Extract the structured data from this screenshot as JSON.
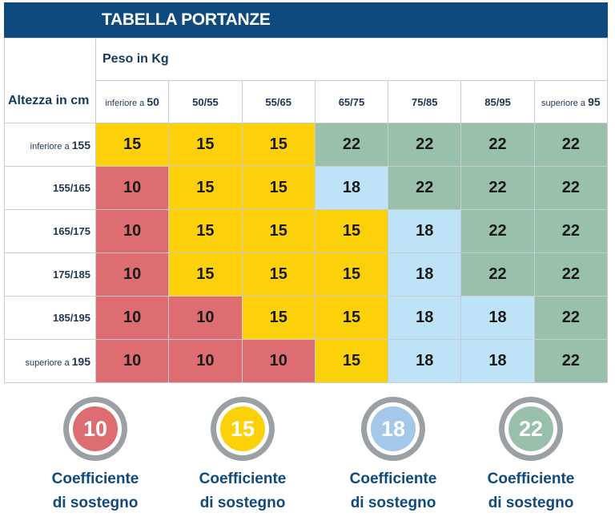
{
  "title": "TABELLA PORTANZE",
  "weight_label": "Peso in Kg",
  "height_label": "Altezza in cm",
  "weight_columns": [
    {
      "prefix": "inferiore a",
      "value": "50"
    },
    {
      "prefix": "",
      "value": "50/55"
    },
    {
      "prefix": "",
      "value": "55/65"
    },
    {
      "prefix": "",
      "value": "65/75"
    },
    {
      "prefix": "",
      "value": "75/85"
    },
    {
      "prefix": "",
      "value": "85/95"
    },
    {
      "prefix": "superiore a",
      "value": "95"
    }
  ],
  "rows": [
    {
      "prefix": "inferiore a",
      "height": "155",
      "values": [
        "15",
        "15",
        "15",
        "22",
        "22",
        "22",
        "22"
      ]
    },
    {
      "prefix": "",
      "height": "155/165",
      "values": [
        "10",
        "15",
        "15",
        "18",
        "22",
        "22",
        "22"
      ]
    },
    {
      "prefix": "",
      "height": "165/175",
      "values": [
        "10",
        "15",
        "15",
        "15",
        "18",
        "22",
        "22"
      ]
    },
    {
      "prefix": "",
      "height": "175/185",
      "values": [
        "10",
        "15",
        "15",
        "15",
        "18",
        "22",
        "22"
      ]
    },
    {
      "prefix": "",
      "height": "185/195",
      "values": [
        "10",
        "10",
        "15",
        "15",
        "18",
        "18",
        "22"
      ]
    },
    {
      "prefix": "superiore a",
      "height": "195",
      "values": [
        "10",
        "10",
        "10",
        "15",
        "18",
        "18",
        "22"
      ]
    }
  ],
  "colors": {
    "10": "#dd6d71",
    "15": "#fdd10a",
    "18": "#a3c8ea",
    "22": "#98c0ab"
  },
  "legend": [
    {
      "value": "10",
      "label_line1": "Coefficiente",
      "label_line2": "di sostegno"
    },
    {
      "value": "15",
      "label_line1": "Coefficiente",
      "label_line2": "di sostegno"
    },
    {
      "value": "18",
      "label_line1": "Coefficiente",
      "label_line2": "di sostegno"
    },
    {
      "value": "22",
      "label_line1": "Coefficiente",
      "label_line2": "di sostegno"
    }
  ]
}
